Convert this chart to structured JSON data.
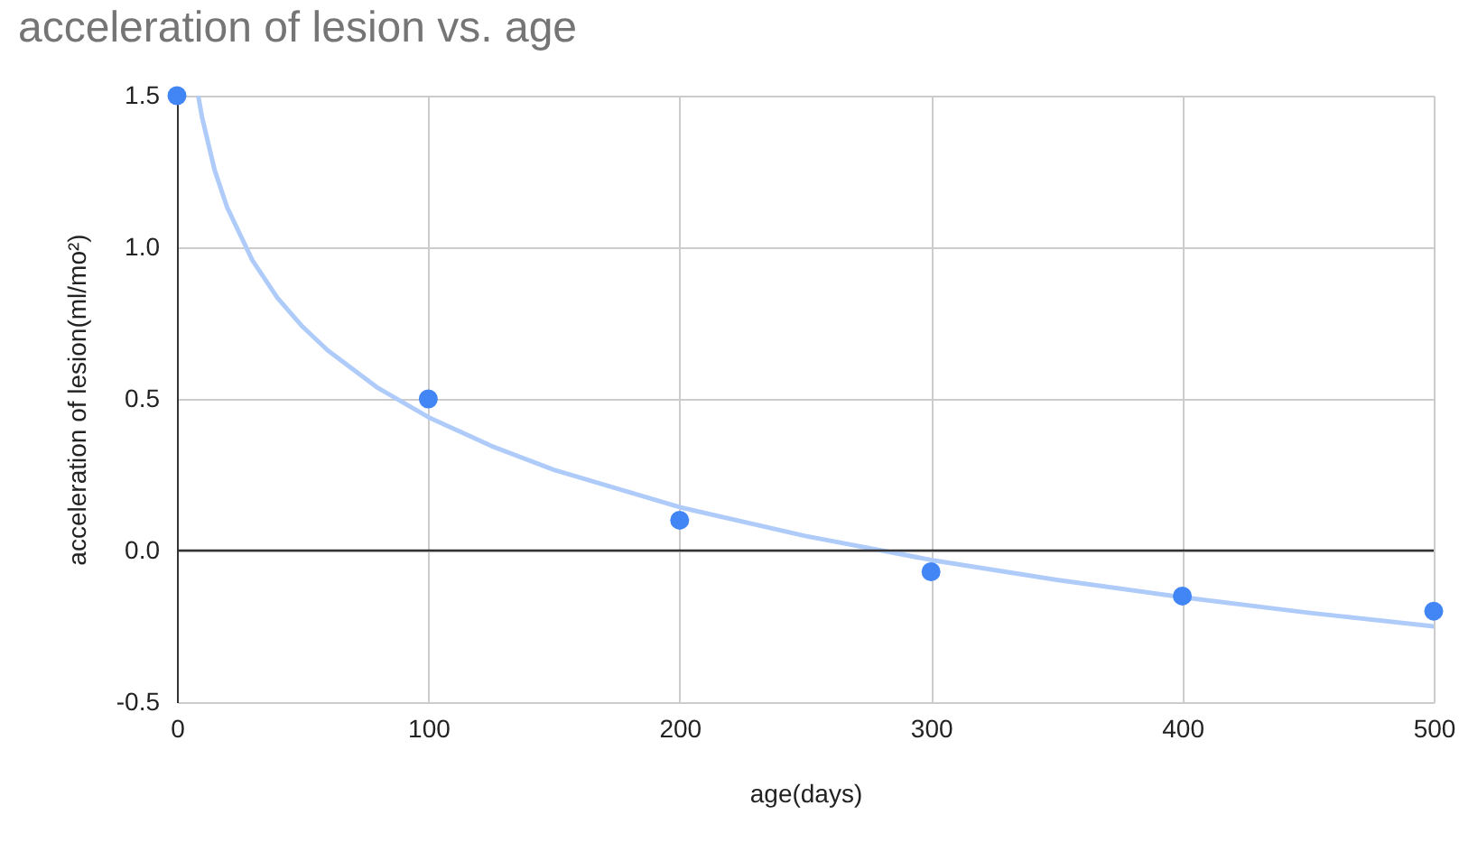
{
  "chart_data": {
    "type": "scatter",
    "title": "acceleration of lesion vs. age",
    "xlabel": "age(days)",
    "ylabel": "acceleration of lesion(ml/mo²)",
    "x": [
      0,
      100,
      200,
      300,
      400,
      500
    ],
    "series": [
      {
        "color": "#4285f4",
        "values": [
          1.5,
          0.5,
          0.1,
          -0.07,
          -0.15,
          -0.2
        ]
      },
      {
        "type": "line",
        "marker": "none",
        "color": "#aecbfa",
        "x": [
          8.6,
          10,
          15,
          20,
          30,
          40,
          50,
          60,
          80,
          100,
          125,
          150,
          200,
          250,
          300,
          350,
          400,
          450,
          500
        ],
        "values": [
          1.493,
          1.428,
          1.254,
          1.131,
          0.957,
          0.833,
          0.738,
          0.66,
          0.536,
          0.44,
          0.345,
          0.266,
          0.143,
          0.048,
          -0.031,
          -0.097,
          -0.154,
          -0.205,
          -0.25
        ]
      }
    ],
    "xlim": [
      0,
      500
    ],
    "xticks": [
      0,
      100,
      200,
      300,
      400,
      500
    ],
    "ylim": [
      -0.5,
      1.5
    ],
    "yticks": [
      {
        "value": -0.5,
        "label": "-0.5"
      },
      {
        "value": 0,
        "label": "0.0"
      },
      {
        "value": 0.5,
        "label": "0.5"
      },
      {
        "value": 1,
        "label": "1.0"
      },
      {
        "value": 1.5,
        "label": "1.5"
      }
    ],
    "ref_lines": [
      {
        "axis": "y",
        "value": 0,
        "color": "#333333"
      }
    ],
    "grid": true,
    "marker": "circle",
    "line_style": "solid"
  }
}
